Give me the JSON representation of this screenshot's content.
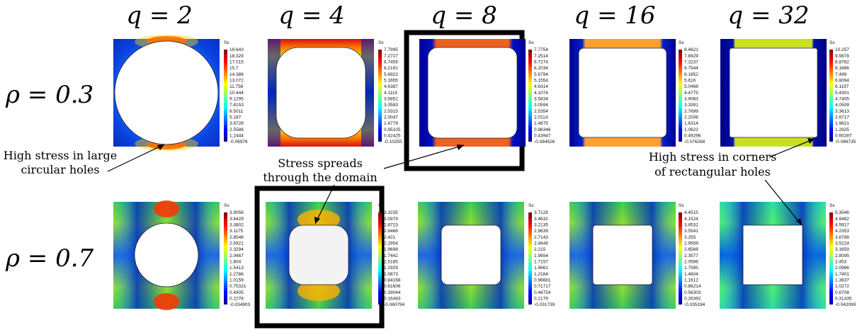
{
  "q_labels": [
    "q = 2",
    "q = 4",
    "q = 8",
    "q = 16",
    "q = 32"
  ],
  "rho_labels": [
    "ρ = 0.3",
    "ρ = 0.7"
  ],
  "colorbar_title": "Sx",
  "annotations": {
    "large_holes": [
      "High stress in large",
      "circular holes"
    ],
    "spreads": [
      "Stress spreads",
      "through the domain"
    ],
    "corners": [
      "High stress in corners",
      "of rectangular holes"
    ]
  },
  "colorbars": [
    [
      "19.643",
      "18.329",
      "17.015",
      "15.7",
      "14.386",
      "13.072",
      "11.758",
      "10.444",
      "9.1295",
      "7.8153",
      "6.5011",
      "5.187",
      "3.8728",
      "2.5586",
      "1.2444",
      "-0.06976"
    ],
    [
      "7.7995",
      "7.2727",
      "6.7459",
      "6.2191",
      "5.6923",
      "5.1655",
      "4.6387",
      "4.1119",
      "3.5851",
      "3.0583",
      "2.5315",
      "2.0047",
      "1.4779",
      "0.95105",
      "0.42425",
      "-0.10255"
    ],
    [
      "7.7754",
      "7.2514",
      "6.7274",
      "6.2034",
      "5.6794",
      "5.1554",
      "4.6314",
      "4.1074",
      "3.5834",
      "3.0594",
      "2.5354",
      "2.0114",
      "1.4875",
      "0.96346",
      "0.43947",
      "-0.084526"
    ],
    [
      "8.4621",
      "7.8929",
      "7.3237",
      "6.7544",
      "6.1852",
      "5.616",
      "5.0468",
      "4.4775",
      "3.9083",
      "3.3391",
      "2.7699",
      "2.2006",
      "1.6314",
      "1.0622",
      "0.49296",
      "-0.076268"
    ],
    [
      "10.257",
      "9.5678",
      "8.8782",
      "8.1886",
      "7.499",
      "6.8094",
      "6.1197",
      "5.4301",
      "4.7405",
      "4.0509",
      "3.3613",
      "2.6717",
      "1.9821",
      "1.2925",
      "0.60287",
      "-0.086735"
    ],
    [
      "3.9056",
      "3.6429",
      "3.3802",
      "3.1175",
      "2.8548",
      "2.5921",
      "2.3294",
      "2.0667",
      "1.804",
      "1.5413",
      "1.2786",
      "1.0159",
      "0.75321",
      "0.4905",
      "0.2278",
      "-0.034903"
    ],
    [
      "3.3235",
      "3.0979",
      "2.8723",
      "2.6466",
      "2.421",
      "2.1954",
      "1.9698",
      "1.7442",
      "1.5185",
      "1.2929",
      "1.0673",
      "0.84168",
      "0.61606",
      "0.39044",
      "0.16483",
      "-0.060794"
    ],
    [
      "3.7128",
      "3.4632",
      "3.2135",
      "2.9639",
      "2.7143",
      "2.4646",
      "2.215",
      "1.9654",
      "1.7157",
      "1.4661",
      "1.2164",
      "0.96681",
      "0.71717",
      "0.46754",
      "0.2179",
      "-0.031739"
    ],
    [
      "4.4515",
      "4.1524",
      "3.8532",
      "3.5541",
      "3.255",
      "2.9559",
      "2.6568",
      "2.3577",
      "2.0586",
      "1.7595",
      "1.4604",
      "1.1612",
      "0.86214",
      "0.56303",
      "0.26392",
      "-0.035194"
    ],
    [
      "5.3046",
      "4.9482",
      "4.5917",
      "4.2353",
      "3.8788",
      "3.5224",
      "3.1659",
      "2.8095",
      "2.453",
      "2.0966",
      "1.7401",
      "1.3837",
      "1.0272",
      "0.6708",
      "0.31435",
      "-0.042099"
    ]
  ],
  "colors": {
    "frame": "#000000",
    "hole": "#ffffff",
    "hole_highlight": "#f3f3f3"
  }
}
